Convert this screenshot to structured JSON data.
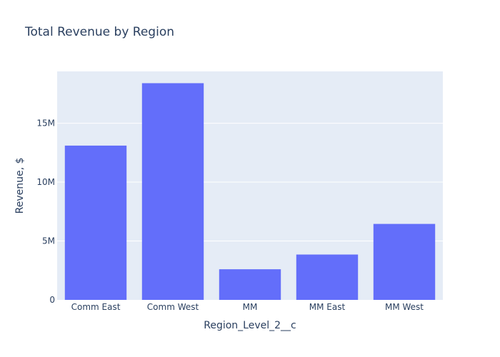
{
  "chart_data": {
    "type": "bar",
    "title": "Total Revenue by Region",
    "xlabel": "Region_Level_2__c",
    "ylabel": "Revenue, $",
    "categories": [
      "Comm East",
      "Comm West",
      "MM",
      "MM East",
      "MM West"
    ],
    "values": [
      13100000,
      18400000,
      2600000,
      3850000,
      6450000
    ],
    "ylim": [
      0,
      19400000
    ],
    "yticks": [
      {
        "value": 0,
        "label": "0"
      },
      {
        "value": 5000000,
        "label": "5M"
      },
      {
        "value": 10000000,
        "label": "10M"
      },
      {
        "value": 15000000,
        "label": "15M"
      }
    ],
    "grid": true,
    "legend": "none",
    "colors": {
      "bar": "#636efa",
      "plot_bg": "#e5ecf6",
      "grid": "#ffffff",
      "text": "#2a3f5f"
    }
  }
}
